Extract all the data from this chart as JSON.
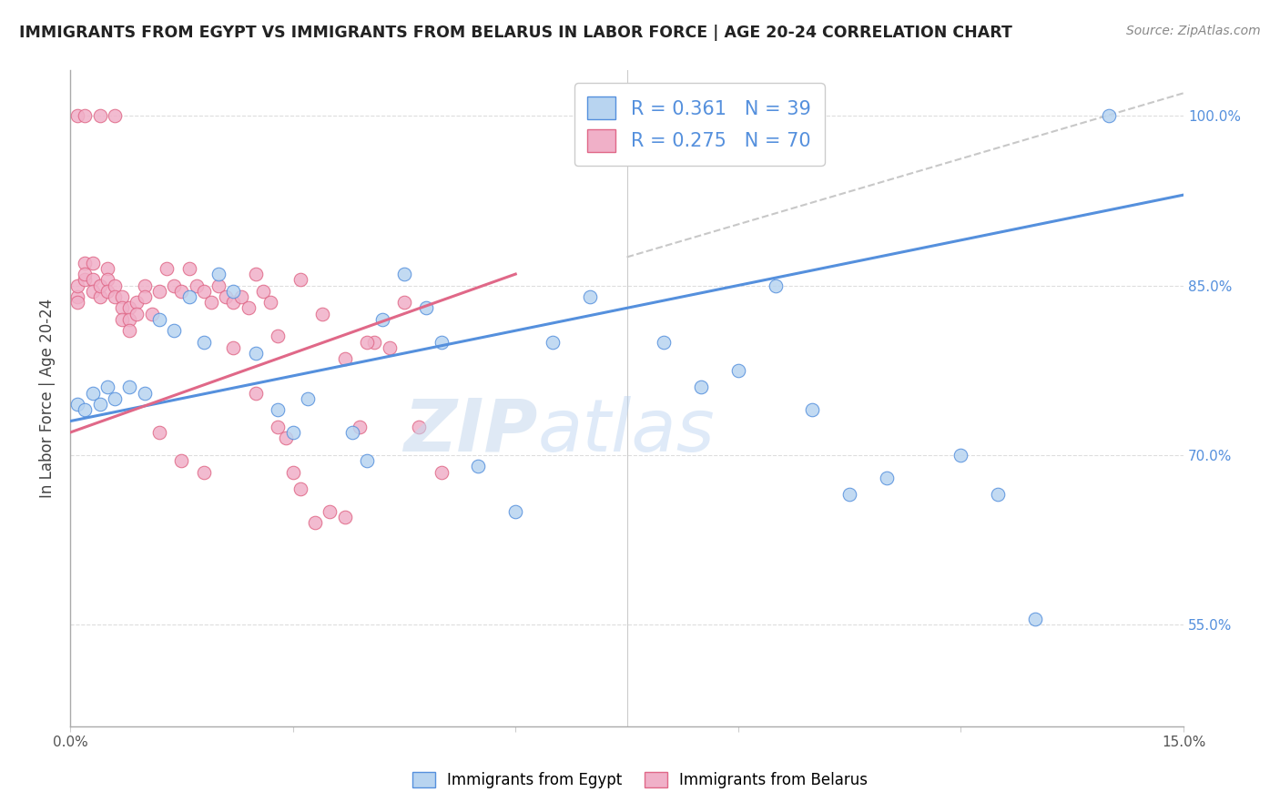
{
  "title": "IMMIGRANTS FROM EGYPT VS IMMIGRANTS FROM BELARUS IN LABOR FORCE | AGE 20-24 CORRELATION CHART",
  "source": "Source: ZipAtlas.com",
  "ylabel": "In Labor Force | Age 20-24",
  "ytick_labels": [
    "55.0%",
    "70.0%",
    "85.0%",
    "100.0%"
  ],
  "ytick_values": [
    0.55,
    0.7,
    0.85,
    1.0
  ],
  "xlim": [
    0.0,
    0.15
  ],
  "ylim": [
    0.46,
    1.04
  ],
  "blue_color": "#b8d4f0",
  "pink_color": "#f0b0c8",
  "blue_line_color": "#5590dd",
  "pink_line_color": "#e06888",
  "dashed_line_color": "#c8c8c8",
  "legend_R_blue": "0.361",
  "legend_N_blue": "39",
  "legend_R_pink": "0.275",
  "legend_N_pink": "70",
  "blue_trend": [
    0.0,
    0.15,
    0.73,
    0.93
  ],
  "pink_trend": [
    0.0,
    0.06,
    0.72,
    0.86
  ],
  "dashed_line": [
    0.075,
    0.15,
    0.875,
    1.02
  ],
  "egypt_x": [
    0.001,
    0.002,
    0.003,
    0.004,
    0.005,
    0.006,
    0.008,
    0.01,
    0.012,
    0.014,
    0.016,
    0.018,
    0.02,
    0.022,
    0.025,
    0.028,
    0.03,
    0.032,
    0.038,
    0.04,
    0.042,
    0.045,
    0.048,
    0.05,
    0.055,
    0.06,
    0.065,
    0.07,
    0.08,
    0.085,
    0.09,
    0.095,
    0.1,
    0.105,
    0.11,
    0.12,
    0.125,
    0.13,
    0.14
  ],
  "egypt_y": [
    0.745,
    0.74,
    0.755,
    0.745,
    0.76,
    0.75,
    0.76,
    0.755,
    0.82,
    0.81,
    0.84,
    0.8,
    0.86,
    0.845,
    0.79,
    0.74,
    0.72,
    0.75,
    0.72,
    0.695,
    0.82,
    0.86,
    0.83,
    0.8,
    0.69,
    0.65,
    0.8,
    0.84,
    0.8,
    0.76,
    0.775,
    0.85,
    0.74,
    0.665,
    0.68,
    0.7,
    0.665,
    0.555,
    1.0
  ],
  "belarus_x": [
    0.001,
    0.001,
    0.001,
    0.001,
    0.002,
    0.002,
    0.002,
    0.002,
    0.003,
    0.003,
    0.003,
    0.004,
    0.004,
    0.004,
    0.005,
    0.005,
    0.005,
    0.006,
    0.006,
    0.006,
    0.007,
    0.007,
    0.007,
    0.008,
    0.008,
    0.008,
    0.009,
    0.009,
    0.01,
    0.01,
    0.011,
    0.012,
    0.013,
    0.014,
    0.015,
    0.016,
    0.017,
    0.018,
    0.019,
    0.02,
    0.021,
    0.022,
    0.023,
    0.024,
    0.025,
    0.026,
    0.027,
    0.028,
    0.029,
    0.03,
    0.031,
    0.033,
    0.035,
    0.037,
    0.039,
    0.041,
    0.043,
    0.045,
    0.047,
    0.05,
    0.012,
    0.015,
    0.018,
    0.022,
    0.025,
    0.028,
    0.031,
    0.034,
    0.037,
    0.04
  ],
  "belarus_y": [
    0.84,
    0.835,
    0.85,
    1.0,
    0.855,
    0.87,
    0.86,
    1.0,
    0.87,
    0.855,
    0.845,
    0.84,
    0.85,
    1.0,
    0.865,
    0.855,
    0.845,
    0.85,
    0.84,
    1.0,
    0.84,
    0.83,
    0.82,
    0.83,
    0.82,
    0.81,
    0.835,
    0.825,
    0.85,
    0.84,
    0.825,
    0.845,
    0.865,
    0.85,
    0.845,
    0.865,
    0.85,
    0.845,
    0.835,
    0.85,
    0.84,
    0.835,
    0.84,
    0.83,
    0.86,
    0.845,
    0.835,
    0.725,
    0.715,
    0.685,
    0.67,
    0.64,
    0.65,
    0.645,
    0.725,
    0.8,
    0.795,
    0.835,
    0.725,
    0.685,
    0.72,
    0.695,
    0.685,
    0.795,
    0.755,
    0.805,
    0.855,
    0.825,
    0.785,
    0.8
  ]
}
